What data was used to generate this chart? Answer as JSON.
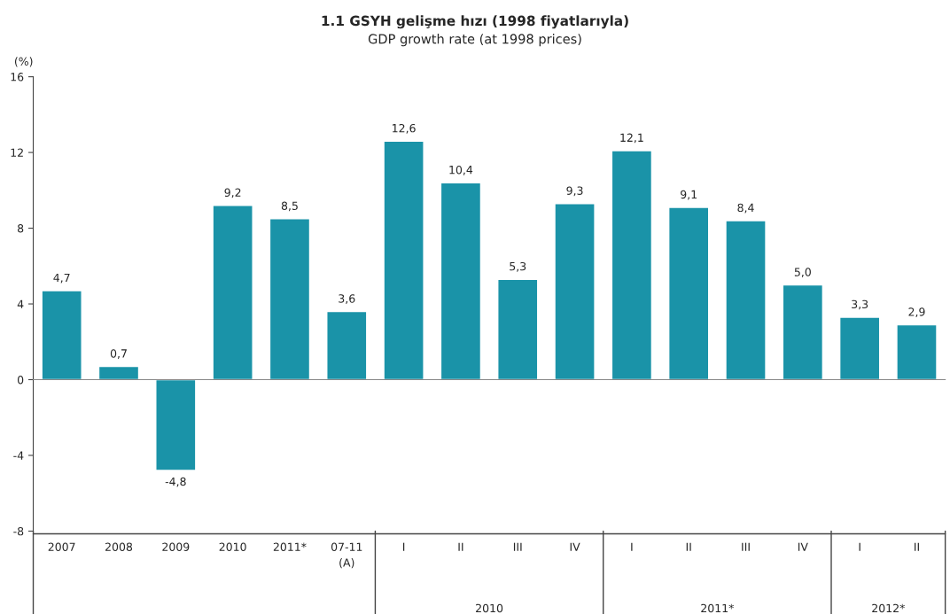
{
  "chart_data": {
    "type": "bar",
    "title": "1.1 GSYH gelişme hızı (1998 fiyatlarıyla)",
    "subtitle": "GDP growth rate (at 1998 prices)",
    "ylabel": "(%)",
    "categories": [
      "2007",
      "2008",
      "2009",
      "2010",
      "2011*",
      "07-11\n(A)",
      "I",
      "II",
      "III",
      "IV",
      "I",
      "II",
      "III",
      "IV",
      "I",
      "II"
    ],
    "values": [
      4.7,
      0.7,
      -4.8,
      9.2,
      8.5,
      3.6,
      12.6,
      10.4,
      5.3,
      9.3,
      12.1,
      9.1,
      8.4,
      5.0,
      3.3,
      2.9
    ],
    "value_labels": [
      "4,7",
      "0,7",
      "-4,8",
      "9,2",
      "8,5",
      "3,6",
      "12,6",
      "10,4",
      "5,3",
      "9,3",
      "12,1",
      "9,1",
      "8,4",
      "5,0",
      "3,3",
      "2,9"
    ],
    "color": "#1a93a8",
    "ylim": [
      -8,
      16
    ],
    "yticks": [
      -8,
      -4,
      0,
      4,
      8,
      12,
      16
    ],
    "legend": false,
    "annotations": [
      "2010",
      "2011*",
      "2012*"
    ]
  }
}
